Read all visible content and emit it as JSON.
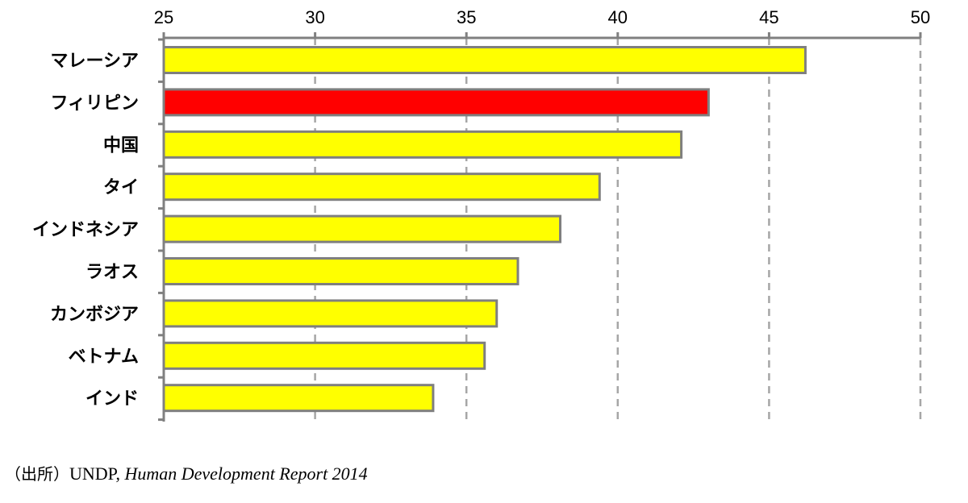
{
  "chart_data": {
    "type": "bar",
    "orientation": "horizontal",
    "categories": [
      "マレーシア",
      "フィリピン",
      "中国",
      "タイ",
      "インドネシア",
      "ラオス",
      "カンボジア",
      "ベトナム",
      "インド"
    ],
    "values": [
      46.2,
      43.0,
      42.1,
      39.4,
      38.1,
      36.7,
      36.0,
      35.6,
      33.9
    ],
    "colors": [
      "#FFFF00",
      "#FF0000",
      "#FFFF00",
      "#FFFF00",
      "#FFFF00",
      "#FFFF00",
      "#FFFF00",
      "#FFFF00",
      "#FFFF00"
    ],
    "highlight": "フィリピン",
    "xlim": [
      25,
      50
    ],
    "xticks": [
      25,
      30,
      35,
      40,
      45,
      50
    ],
    "x_axis_position": "top",
    "grid": "vertical dashed",
    "title": "",
    "xlabel": "",
    "ylabel": ""
  },
  "source": {
    "prefix": "（出所）",
    "org": "UNDP",
    "separator": ", ",
    "title": "Human Development Report 2014"
  }
}
